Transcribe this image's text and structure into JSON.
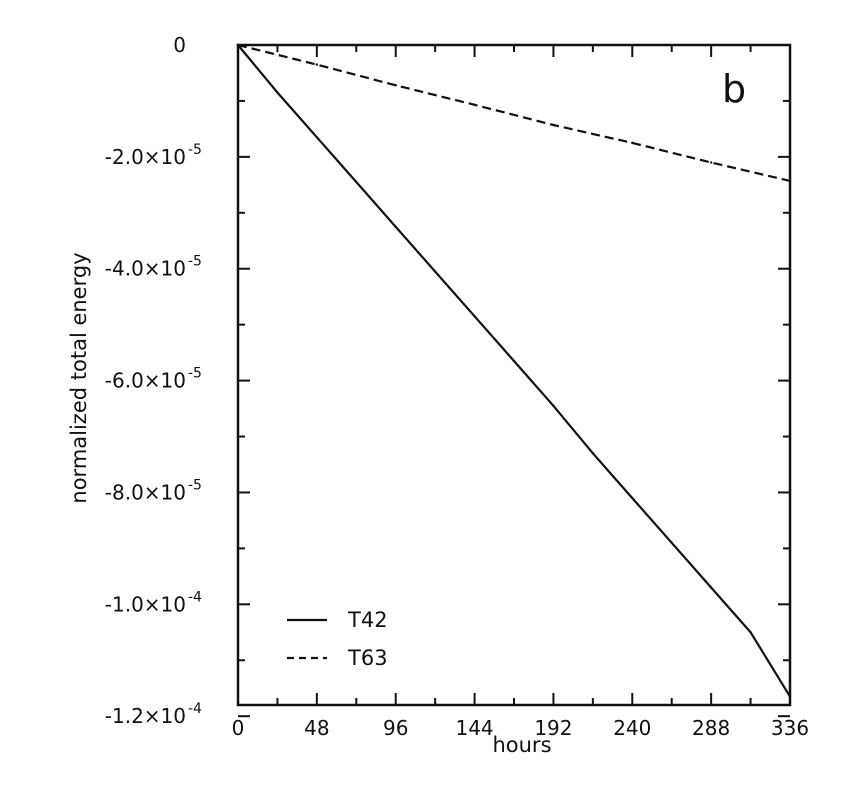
{
  "chart_data": {
    "type": "line",
    "panel_label": "b",
    "title": "",
    "xlabel": "hours",
    "ylabel": "normalized total energy",
    "xlim": [
      0,
      336
    ],
    "ylim": [
      -0.000118,
      0
    ],
    "x_ticks": [
      0,
      48,
      96,
      144,
      192,
      240,
      288,
      336
    ],
    "x_tick_labels": [
      "0",
      "48",
      "96",
      "144",
      "192",
      "240",
      "288",
      "336"
    ],
    "y_ticks": [
      0,
      -2e-05,
      -4e-05,
      -6e-05,
      -8e-05,
      -0.0001,
      -0.00012
    ],
    "y_tick_labels": [
      {
        "base": "0",
        "exp": ""
      },
      {
        "base": "-2.0×10",
        "exp": "-5"
      },
      {
        "base": "-4.0×10",
        "exp": "-5"
      },
      {
        "base": "-6.0×10",
        "exp": "-5"
      },
      {
        "base": "-8.0×10",
        "exp": "-5"
      },
      {
        "base": "-1.0×10",
        "exp": "-4"
      },
      {
        "base": "-1.2×10",
        "exp": "-4"
      }
    ],
    "grid": false,
    "legend_position": "bottom-left",
    "series": [
      {
        "name": "T42",
        "line_style": "solid",
        "color": "#111111",
        "x": [
          0,
          24,
          48,
          72,
          96,
          120,
          144,
          168,
          192,
          216,
          240,
          264,
          288,
          312,
          336
        ],
        "y": [
          0,
          -8.5e-06,
          -1.65e-05,
          -2.45e-05,
          -3.25e-05,
          -4.05e-05,
          -4.85e-05,
          -5.65e-05,
          -6.45e-05,
          -7.3e-05,
          -8.1e-05,
          -8.9e-05,
          -9.7e-05,
          -0.000105,
          -0.0001165
        ]
      },
      {
        "name": "T63",
        "line_style": "dashed",
        "color": "#111111",
        "x": [
          0,
          48,
          96,
          144,
          192,
          240,
          288,
          336
        ],
        "y": [
          0,
          -3.5e-06,
          -7.2e-06,
          -1.07e-05,
          -1.43e-05,
          -1.75e-05,
          -2.1e-05,
          -2.43e-05
        ]
      }
    ]
  }
}
